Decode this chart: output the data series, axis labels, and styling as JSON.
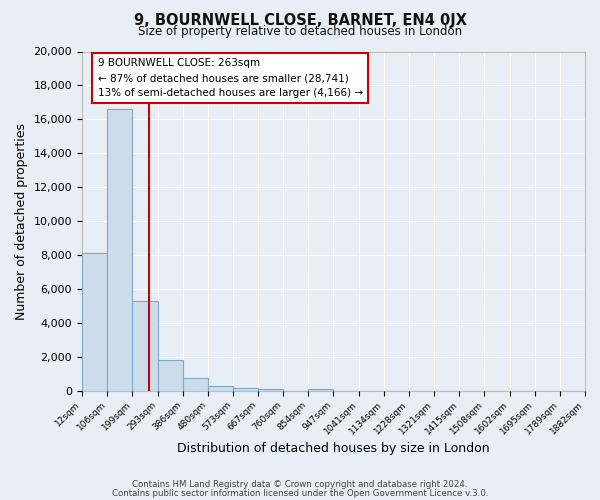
{
  "title": "9, BOURNWELL CLOSE, BARNET, EN4 0JX",
  "subtitle": "Size of property relative to detached houses in London",
  "xlabel": "Distribution of detached houses by size in London",
  "ylabel": "Number of detached properties",
  "bar_color": "#cddceb",
  "bar_edge_color": "#7aaac8",
  "background_color": "#e8eef5",
  "fig_background_color": "#e8eef5",
  "grid_color": "#ffffff",
  "red_line_x": 263,
  "bin_edges": [
    12,
    106,
    199,
    293,
    386,
    480,
    573,
    667,
    760,
    854,
    947,
    1041,
    1134,
    1228,
    1321,
    1415,
    1508,
    1602,
    1695,
    1789,
    1882
  ],
  "bin_labels": [
    "12sqm",
    "106sqm",
    "199sqm",
    "293sqm",
    "386sqm",
    "480sqm",
    "573sqm",
    "667sqm",
    "760sqm",
    "854sqm",
    "947sqm",
    "1041sqm",
    "1134sqm",
    "1228sqm",
    "1321sqm",
    "1415sqm",
    "1508sqm",
    "1602sqm",
    "1695sqm",
    "1789sqm",
    "1882sqm"
  ],
  "counts": [
    8100,
    16600,
    5300,
    1800,
    750,
    280,
    175,
    120,
    0,
    110,
    0,
    0,
    0,
    0,
    0,
    0,
    0,
    0,
    0,
    0
  ],
  "ylim": [
    0,
    20000
  ],
  "yticks": [
    0,
    2000,
    4000,
    6000,
    8000,
    10000,
    12000,
    14000,
    16000,
    18000,
    20000
  ],
  "annotation_title": "9 BOURNWELL CLOSE: 263sqm",
  "annotation_line1": "← 87% of detached houses are smaller (28,741)",
  "annotation_line2": "13% of semi-detached houses are larger (4,166) →",
  "annotation_box_facecolor": "#ffffff",
  "annotation_box_edgecolor": "#cc0000",
  "footer1": "Contains HM Land Registry data © Crown copyright and database right 2024.",
  "footer2": "Contains public sector information licensed under the Open Government Licence v.3.0."
}
